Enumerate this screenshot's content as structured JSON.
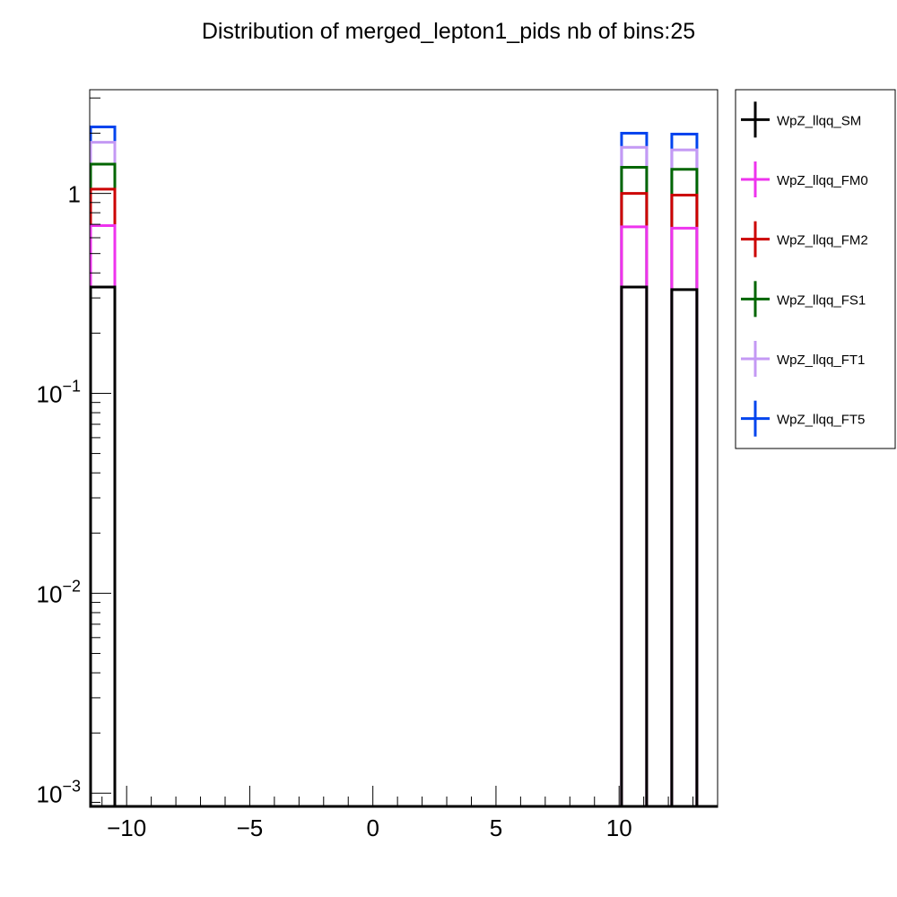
{
  "chart_data": {
    "type": "histogram-step",
    "title": "Distribution of merged_lepton1_pids nb of bins:25",
    "xlabel": "",
    "ylabel": "",
    "log_y": true,
    "xlim": [
      -11.5,
      14.0
    ],
    "ylim": [
      0.00085,
      3.3
    ],
    "stacked": true,
    "bin_width": 1.02,
    "x_ticks": [
      {
        "value": -10,
        "label": "−10"
      },
      {
        "value": -5,
        "label": "−5"
      },
      {
        "value": 0,
        "label": "0"
      },
      {
        "value": 5,
        "label": "5"
      },
      {
        "value": 10,
        "label": "10"
      }
    ],
    "y_ticks": [
      {
        "value": 1,
        "base": "1",
        "exp": ""
      },
      {
        "value": 0.1,
        "base": "10",
        "exp": "−1"
      },
      {
        "value": 0.01,
        "base": "10",
        "exp": "−2"
      },
      {
        "value": 0.001,
        "base": "10",
        "exp": "−3"
      }
    ],
    "bins": [
      {
        "lo": -11.5,
        "hi": -10.48
      },
      {
        "lo": 10.1,
        "hi": 11.12
      },
      {
        "lo": 12.14,
        "hi": 13.16
      }
    ],
    "series": [
      {
        "name": "WpZ_llqq_SM",
        "color": "#000000",
        "values": [
          0.34,
          0.34,
          0.33
        ]
      },
      {
        "name": "WpZ_llqq_FM0",
        "color": "#ee33ee",
        "values": [
          0.69,
          0.68,
          0.67
        ]
      },
      {
        "name": "WpZ_llqq_FM2",
        "color": "#cc0000",
        "values": [
          1.05,
          1.0,
          0.98
        ]
      },
      {
        "name": "WpZ_llqq_FS1",
        "color": "#006600",
        "values": [
          1.4,
          1.35,
          1.32
        ]
      },
      {
        "name": "WpZ_llqq_FT1",
        "color": "#c499f4",
        "values": [
          1.8,
          1.7,
          1.65
        ]
      },
      {
        "name": "WpZ_llqq_FT5",
        "color": "#0044ee",
        "values": [
          2.15,
          2.0,
          1.98
        ]
      }
    ],
    "legend_position": "right"
  }
}
